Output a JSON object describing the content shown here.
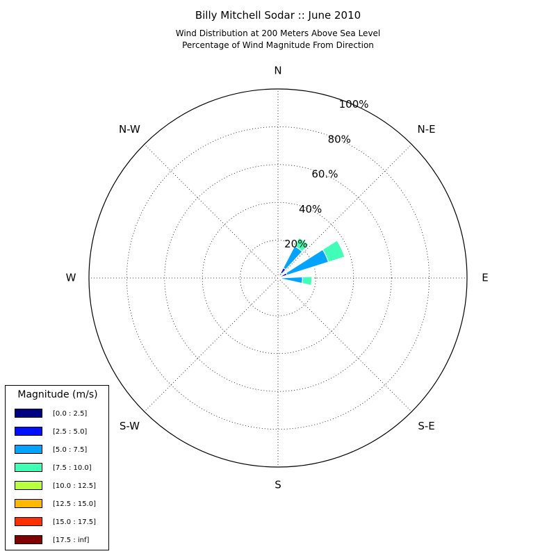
{
  "chart_data": {
    "type": "windrose",
    "title": "Billy Mitchell Sodar :: June 2010",
    "subtitle_lines": [
      "Wind Distribution at 200 Meters Above Sea Level",
      "Percentage of Wind Magnitude From Direction"
    ],
    "directions": [
      "N",
      "N-E",
      "E",
      "S-E",
      "S",
      "S-W",
      "W",
      "N-W"
    ],
    "radial_ticks": [
      "20%",
      "40%",
      "60.%",
      "80%",
      "100%"
    ],
    "radial_tick_values": [
      20,
      40,
      60,
      80,
      100
    ],
    "rmax": 100,
    "grid": true,
    "legend_title": "Magnitude (m/s)",
    "legend_placement": "lower-left",
    "bins": [
      {
        "label": "[0.0 : 2.5]",
        "color": "#000080"
      },
      {
        "label": "[2.5 : 5.0]",
        "color": "#0010ff"
      },
      {
        "label": "[5.0 : 7.5]",
        "color": "#00a4ff"
      },
      {
        "label": "[7.5 : 10.0]",
        "color": "#40ffb7"
      },
      {
        "label": "[10.0 : 12.5]",
        "color": "#b7ff40"
      },
      {
        "label": "[12.5 : 15.0]",
        "color": "#ffb900"
      },
      {
        "label": "[15.0 : 17.5]",
        "color": "#ff3000"
      },
      {
        "label": "[17.5 : inf]",
        "color": "#800000"
      }
    ],
    "sectors": [
      {
        "direction_deg": 35,
        "cumulative": [
          3,
          6,
          19,
          24,
          24,
          24,
          24,
          24
        ]
      },
      {
        "direction_deg": 65,
        "cumulative": [
          2,
          5,
          28,
          37,
          37,
          37,
          37,
          37
        ]
      },
      {
        "direction_deg": 95,
        "cumulative": [
          1,
          2,
          13,
          18,
          18,
          18,
          18,
          18
        ]
      }
    ]
  }
}
